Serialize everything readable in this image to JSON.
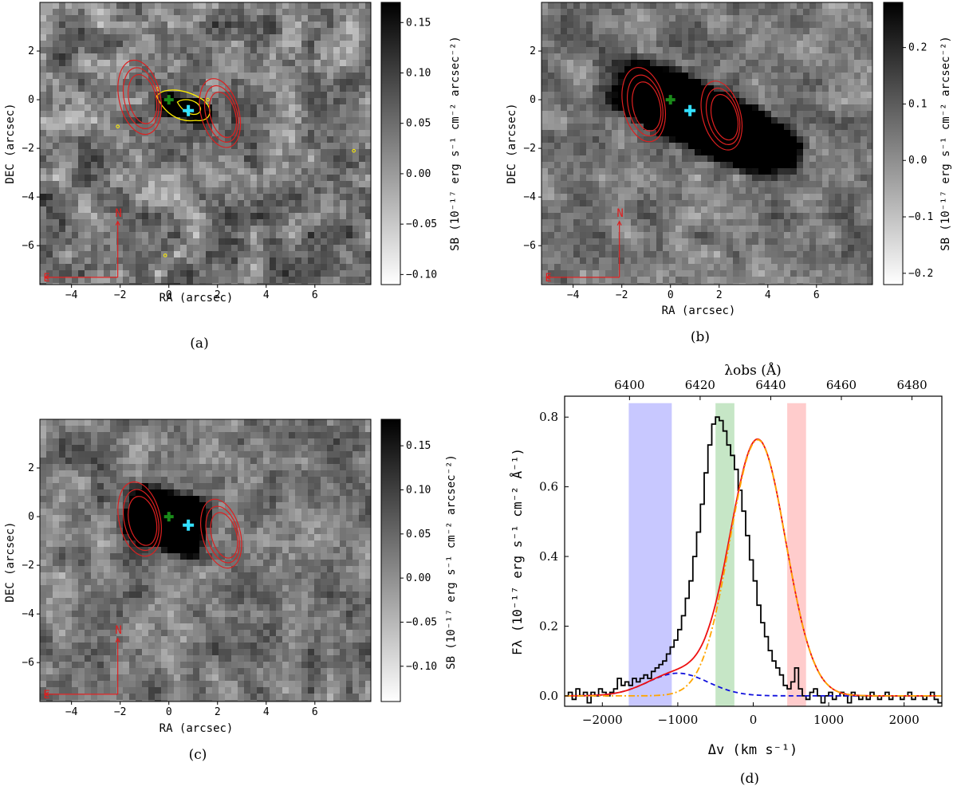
{
  "colors": {
    "contour_red": "#dd2020",
    "contour_yellow": "#ffee00",
    "center_green": "#1a8a1a",
    "center_cyan": "#33e0ff",
    "compass_red": "#dd2020",
    "spectrum_black": "#000000",
    "fit_red": "#ee1111",
    "fit_orange": "#ffa500",
    "fit_blue": "#1010dd",
    "band_blue": "#c8c8ff",
    "band_green": "#c6e6c6",
    "band_red": "#ffcccc"
  },
  "chart_data": [
    {
      "id": "a",
      "type": "heatmap",
      "caption": "(a)",
      "xlabel": "RA (arcsec)",
      "ylabel": "DEC (arcsec)",
      "xlim": [
        -5.3,
        8.3
      ],
      "ylim": [
        -7.6,
        4.0
      ],
      "xticks": [
        -4,
        -2,
        0,
        2,
        4,
        6
      ],
      "yticks": [
        -6,
        -4,
        -2,
        0,
        2
      ],
      "colorbar": {
        "label": "SB (10⁻¹⁷ erg s⁻¹ cm⁻² arcsec⁻²)",
        "min": -0.11,
        "max": 0.17,
        "ticks": [
          -0.1,
          -0.05,
          0.0,
          0.05,
          0.1,
          0.15
        ]
      },
      "noise": 0.55,
      "blobs": [
        {
          "x": 0.6,
          "y": -0.35,
          "a": 1.1,
          "b": 0.45,
          "angle": -15,
          "amp": 0.6
        }
      ],
      "yellow_contours": true,
      "red_contour_centers": [
        {
          "x": -1.2,
          "y": 0.1
        },
        {
          "x": 2.1,
          "y": -0.55
        }
      ],
      "green_cross": {
        "x": 0,
        "y": 0
      },
      "cyan_cross": {
        "x": 0.8,
        "y": -0.45
      },
      "compass": {
        "N": "N",
        "E": "E"
      }
    },
    {
      "id": "b",
      "type": "heatmap",
      "caption": "(b)",
      "xlabel": "RA (arcsec)",
      "ylabel": "DEC (arcsec)",
      "xlim": [
        -5.3,
        8.3
      ],
      "ylim": [
        -7.6,
        4.0
      ],
      "xticks": [
        -4,
        -2,
        0,
        2,
        4,
        6
      ],
      "yticks": [
        -6,
        -4,
        -2,
        0,
        2
      ],
      "colorbar": {
        "label": "SB (10⁻¹⁷ erg s⁻¹ cm⁻² arcsec⁻²)",
        "min": -0.22,
        "max": 0.28,
        "ticks": [
          -0.2,
          -0.1,
          0.0,
          0.1,
          0.2
        ]
      },
      "noise": 0.4,
      "blobs": [
        {
          "x": 1.2,
          "y": -0.7,
          "a": 3.2,
          "b": 1.15,
          "angle": -25,
          "amp": 1.3
        },
        {
          "x": 4.0,
          "y": -1.9,
          "a": 1.3,
          "b": 0.7,
          "angle": -20,
          "amp": 0.55
        }
      ],
      "yellow_contours": false,
      "red_contour_centers": [
        {
          "x": -1.1,
          "y": -0.2
        },
        {
          "x": 2.1,
          "y": -0.65
        }
      ],
      "green_cross": {
        "x": 0,
        "y": 0
      },
      "cyan_cross": {
        "x": 0.8,
        "y": -0.45
      },
      "compass": {
        "N": "N",
        "E": "E"
      }
    },
    {
      "id": "c",
      "type": "heatmap",
      "caption": "(c)",
      "xlabel": "RA (arcsec)",
      "ylabel": "DEC (arcsec)",
      "xlim": [
        -5.3,
        8.3
      ],
      "ylim": [
        -7.6,
        4.0
      ],
      "xticks": [
        -4,
        -2,
        0,
        2,
        4,
        6
      ],
      "yticks": [
        -6,
        -4,
        -2,
        0,
        2
      ],
      "colorbar": {
        "label": "SB (10⁻¹⁷ erg s⁻¹ cm⁻² arcsec⁻²)",
        "min": -0.14,
        "max": 0.18,
        "ticks": [
          -0.1,
          -0.05,
          0.0,
          0.05,
          0.1,
          0.15
        ]
      },
      "noise": 0.45,
      "blobs": [
        {
          "x": -0.1,
          "y": -0.15,
          "a": 1.5,
          "b": 1.05,
          "angle": -15,
          "amp": 1.4
        }
      ],
      "yellow_contours": false,
      "red_contour_centers": [
        {
          "x": -1.2,
          "y": -0.1
        },
        {
          "x": 2.15,
          "y": -0.7
        }
      ],
      "green_cross": {
        "x": 0,
        "y": 0
      },
      "cyan_cross": {
        "x": 0.8,
        "y": -0.35
      },
      "compass": {
        "N": "N",
        "E": "E"
      }
    },
    {
      "id": "d",
      "type": "line",
      "caption": "(d)",
      "xlabel": "Δv (km s⁻¹)",
      "ylabel": "Fλ (10⁻¹⁷ erg s⁻¹ cm⁻² Å⁻¹)",
      "top_xlabel": "λobs (Å)",
      "xlim": [
        -2500,
        2500
      ],
      "ylim": [
        -0.03,
        0.86
      ],
      "xticks": [
        -2000,
        -1000,
        0,
        1000,
        2000
      ],
      "yticks": [
        0.0,
        0.2,
        0.4,
        0.6,
        0.8
      ],
      "top_ticks": [
        6400,
        6420,
        6440,
        6460,
        6480
      ],
      "top_ticks_dv": [
        -1640,
        -704,
        232,
        1168,
        2104
      ],
      "bands": [
        {
          "name": "blue",
          "from": -1650,
          "to": -1080
        },
        {
          "name": "green",
          "from": -500,
          "to": -250
        },
        {
          "name": "red",
          "from": 450,
          "to": 700
        }
      ],
      "series": [
        {
          "name": "observed spectrum",
          "style": "steps",
          "x_start": -2500,
          "x_step": 50,
          "values": [
            0.0,
            0.01,
            -0.01,
            0.02,
            0.0,
            0.01,
            -0.02,
            0.01,
            0.0,
            0.02,
            0.01,
            0.0,
            0.01,
            0.02,
            0.05,
            0.03,
            0.04,
            0.03,
            0.05,
            0.04,
            0.05,
            0.06,
            0.05,
            0.07,
            0.08,
            0.09,
            0.1,
            0.12,
            0.14,
            0.16,
            0.19,
            0.23,
            0.28,
            0.33,
            0.4,
            0.47,
            0.55,
            0.64,
            0.72,
            0.78,
            0.8,
            0.79,
            0.76,
            0.72,
            0.69,
            0.65,
            0.59,
            0.53,
            0.46,
            0.39,
            0.33,
            0.26,
            0.21,
            0.17,
            0.13,
            0.1,
            0.08,
            0.06,
            0.03,
            0.02,
            0.04,
            0.08,
            0.02,
            0.0,
            -0.01,
            0.01,
            0.02,
            0.0,
            -0.02,
            0.0,
            0.01,
            -0.01,
            0.0,
            0.01,
            0.0,
            -0.02,
            0.01,
            0.0,
            -0.01,
            0.0,
            -0.01,
            0.01,
            0.0,
            -0.01,
            0.0,
            0.01,
            -0.01,
            0.0,
            0.0,
            -0.01,
            0.0,
            0.01,
            -0.01,
            0.0,
            0.0,
            -0.01,
            0.0,
            0.01,
            -0.01,
            -0.02
          ]
        },
        {
          "name": "total fit",
          "style": "solid",
          "model": "sum"
        },
        {
          "name": "main component",
          "style": "dashdot",
          "model": "gauss",
          "amp": 0.735,
          "center": 60,
          "sigma": 370
        },
        {
          "name": "blue component",
          "style": "dashed",
          "model": "gauss",
          "amp": 0.065,
          "center": -1000,
          "sigma": 400
        }
      ]
    }
  ]
}
